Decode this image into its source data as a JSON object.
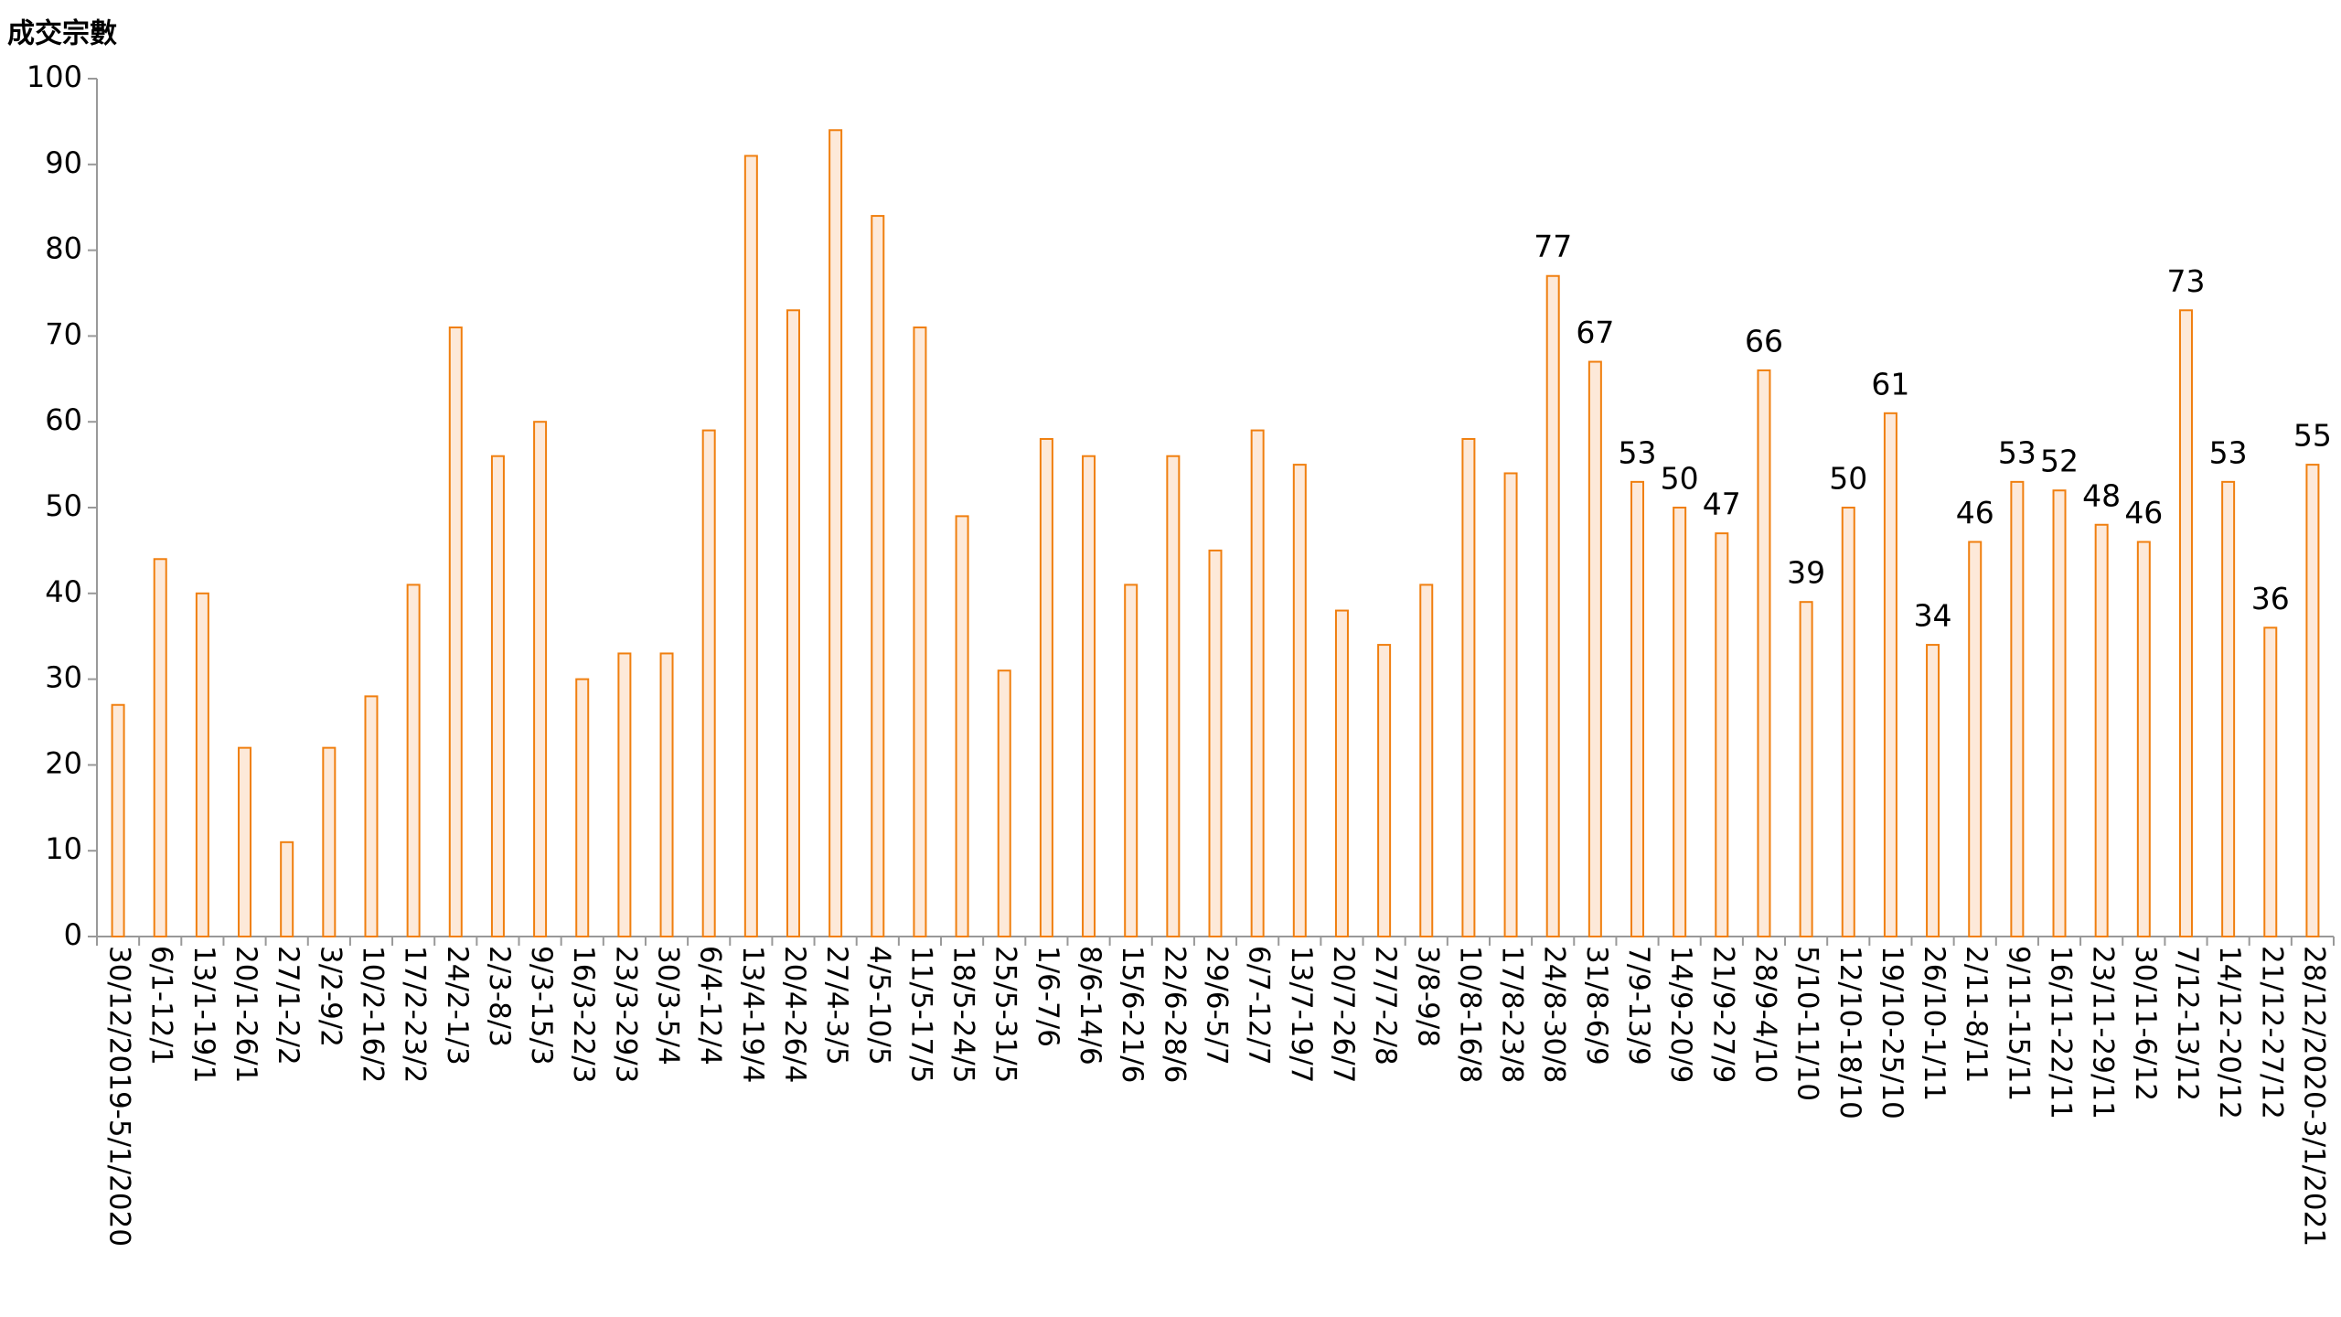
{
  "chart_data": {
    "type": "bar",
    "y_label": "成交宗數",
    "categories": [
      "30/12/2019-5/1/2020",
      "6/1-12/1",
      "13/1-19/1",
      "20/1-26/1",
      "27/1-2/2",
      "3/2-9/2",
      "10/2-16/2",
      "17/2-23/2",
      "24/2-1/3",
      "2/3-8/3",
      "9/3-15/3",
      "16/3-22/3",
      "23/3-29/3",
      "30/3-5/4",
      "6/4-12/4",
      "13/4-19/4",
      "20/4-26/4",
      "27/4-3/5",
      "4/5-10/5",
      "11/5-17/5",
      "18/5-24/5",
      "25/5-31/5",
      "1/6-7/6",
      "8/6-14/6",
      "15/6-21/6",
      "22/6-28/6",
      "29/6-5/7",
      "6/7-12/7",
      "13/7-19/7",
      "20/7-26/7",
      "27/7-2/8",
      "3/8-9/8",
      "10/8-16/8",
      "17/8-23/8",
      "24/8-30/8",
      "31/8-6/9",
      "7/9-13/9",
      "14/9-20/9",
      "21/9-27/9",
      "28/9-4/10",
      "5/10-11/10",
      "12/10-18/10",
      "19/10-25/10",
      "26/10-1/11",
      "2/11-8/11",
      "9/11-15/11",
      "16/11-22/11",
      "23/11-29/11",
      "30/11-6/12",
      "7/12-13/12",
      "14/12-20/12",
      "21/12-27/12",
      "28/12/2020-3/1/2021"
    ],
    "series": [
      {
        "color": "#f07f0f",
        "fill": "#fde9d9",
        "data_labels": false,
        "values": [
          27,
          44,
          40,
          22,
          11,
          22,
          28,
          41,
          71,
          56,
          60,
          30,
          33,
          33,
          59,
          91,
          73,
          94,
          84,
          71,
          49,
          31,
          58,
          56,
          41,
          56,
          45,
          59,
          55,
          38,
          34,
          41,
          58,
          54,
          null,
          null,
          null,
          null,
          null,
          null,
          null,
          null,
          null,
          null,
          null,
          null,
          null,
          null,
          null,
          null,
          null,
          null,
          null
        ]
      },
      {
        "color": "#f07f0f",
        "fill": "#fde9d9",
        "data_labels": true,
        "values": [
          null,
          null,
          null,
          null,
          null,
          null,
          null,
          null,
          null,
          null,
          null,
          null,
          null,
          null,
          null,
          null,
          null,
          null,
          null,
          null,
          null,
          null,
          null,
          null,
          null,
          null,
          null,
          null,
          null,
          null,
          null,
          null,
          null,
          null,
          77,
          67,
          53,
          50,
          47,
          66,
          39,
          50,
          61,
          34,
          46,
          53,
          52,
          48,
          46,
          73,
          53,
          36,
          55
        ]
      }
    ],
    "ylim": [
      0,
      100
    ],
    "yticks": [
      0,
      10,
      20,
      30,
      40,
      50,
      60,
      70,
      80,
      90,
      100
    ],
    "grid": false
  }
}
